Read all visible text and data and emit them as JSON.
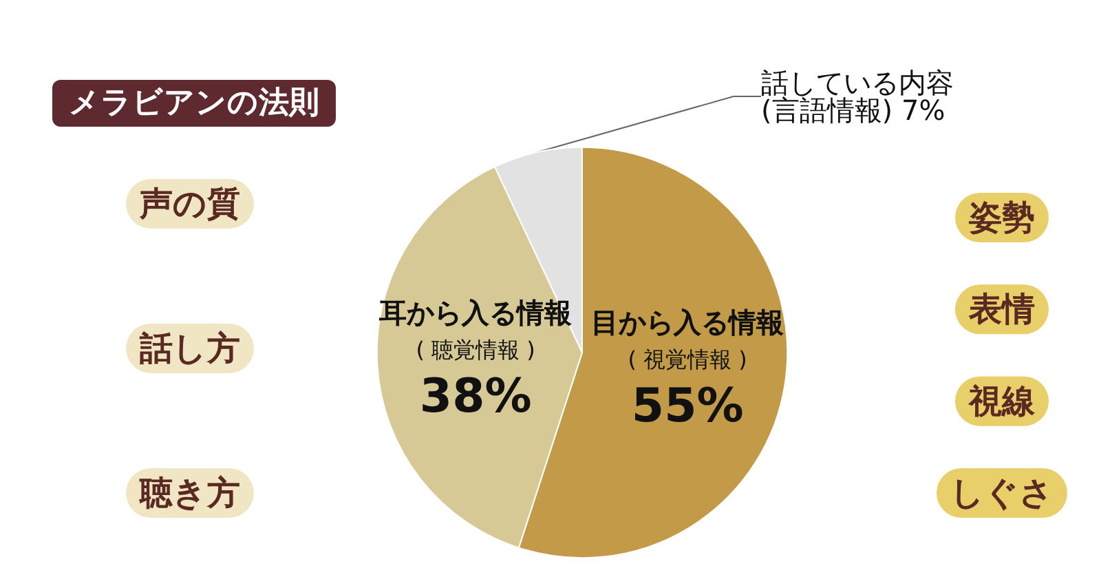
{
  "chart_data": {
    "type": "pie",
    "title": "メラビアンの法則",
    "categories": [
      "目から入る情報\n( 視覚情報 )",
      "耳から入る情報\n( 聴覚情報 )",
      "話している内容\n(言語情報)"
    ],
    "values": [
      55,
      38,
      7
    ],
    "colors": [
      "#c29a48",
      "#d6c996",
      "#e2e2e2"
    ],
    "value_labels": [
      "55%",
      "38%",
      "7%"
    ],
    "annotations": [
      "声の質",
      "話し方",
      "聴き方",
      "姿勢",
      "表情",
      "視線",
      "しぐさ"
    ]
  }
}
